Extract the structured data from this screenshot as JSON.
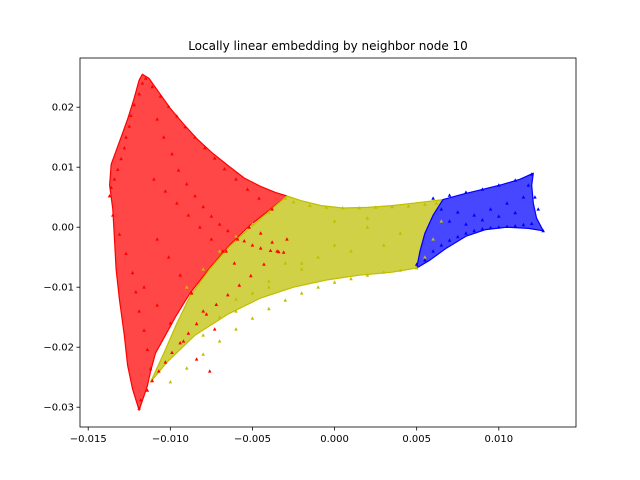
{
  "chart_data": {
    "type": "scatter",
    "title": "Locally linear embedding by neighbor node 10",
    "xlabel": "",
    "ylabel": "",
    "xlim": [
      -0.0155,
      0.0147
    ],
    "ylim": [
      -0.0333,
      0.0282
    ],
    "x_ticks": [
      -0.015,
      -0.01,
      -0.005,
      0.0,
      0.005,
      0.01
    ],
    "x_tick_labels": [
      "−0.015",
      "−0.010",
      "−0.005",
      "0.000",
      "0.005",
      "0.010"
    ],
    "y_ticks": [
      -0.03,
      -0.02,
      -0.01,
      0.0,
      0.01,
      0.02
    ],
    "y_tick_labels": [
      "−0.03",
      "−0.02",
      "−0.01",
      "0.00",
      "0.01",
      "0.02"
    ],
    "grid": false,
    "legend": "none",
    "marker": "^",
    "series": [
      {
        "color": "#ff0000",
        "x": [
          -0.0119,
          -0.0118,
          -0.0114,
          -0.0111,
          -0.0107,
          -0.0103,
          -0.0099,
          -0.0094,
          -0.0089,
          -0.0084,
          -0.0078,
          -0.0072,
          -0.0065,
          -0.0058,
          -0.0051,
          -0.0043,
          -0.0035,
          -0.0029,
          -0.0038,
          -0.0046,
          -0.0053,
          -0.006,
          -0.0067,
          -0.0073,
          -0.0079,
          -0.0085,
          -0.0091,
          -0.0096,
          -0.0101,
          -0.0106,
          -0.0111,
          -0.0115,
          -0.0117,
          -0.0119,
          -0.0122,
          -0.0124,
          -0.0125,
          -0.0127,
          -0.0128,
          -0.013,
          -0.0132,
          -0.0134,
          -0.0136,
          -0.0137,
          -0.0135,
          -0.0131,
          -0.0127,
          -0.0123,
          -0.0121,
          -0.0119,
          -0.0116,
          -0.0114,
          -0.0112,
          -0.0108,
          -0.0104,
          -0.0099,
          -0.0095,
          -0.009,
          -0.0085,
          -0.008,
          -0.0075,
          -0.007,
          -0.0065,
          -0.006,
          -0.0055,
          -0.005,
          -0.0045,
          -0.0039,
          -0.0034,
          -0.0031,
          -0.0108,
          -0.0101,
          -0.0094,
          -0.0087,
          -0.008,
          -0.0073,
          -0.0066,
          -0.0059,
          -0.0052,
          -0.0045,
          -0.0038,
          -0.011,
          -0.0103,
          -0.0096,
          -0.0089,
          -0.0082,
          -0.0075,
          -0.0068,
          -0.0061,
          -0.0116,
          -0.0108,
          -0.01,
          -0.0092,
          -0.0084,
          -0.0076
        ],
        "y": [
          -0.0302,
          -0.0288,
          -0.0272,
          -0.0256,
          -0.024,
          -0.0225,
          -0.0209,
          -0.0193,
          -0.0177,
          -0.0161,
          -0.0145,
          -0.0129,
          -0.0113,
          -0.0097,
          -0.0081,
          -0.0062,
          -0.004,
          -0.002,
          0.003,
          0.0048,
          0.0063,
          0.008,
          0.0097,
          0.0115,
          0.0132,
          0.015,
          0.0167,
          0.0185,
          0.0201,
          0.0218,
          0.0234,
          0.0248,
          0.024,
          0.0222,
          0.0204,
          0.0186,
          0.0168,
          0.015,
          0.0132,
          0.0114,
          0.0096,
          0.008,
          0.0066,
          0.0052,
          0.002,
          -0.0012,
          -0.0044,
          -0.0076,
          -0.0108,
          -0.014,
          -0.0172,
          -0.0204,
          -0.0236,
          0.018,
          0.015,
          0.0122,
          0.0095,
          0.0072,
          0.0052,
          0.0034,
          0.0018,
          0.0005,
          -0.0006,
          -0.0015,
          -0.0023,
          -0.003,
          -0.0035,
          -0.0039,
          -0.0041,
          -0.0042,
          -0.002,
          -0.005,
          -0.008,
          -0.011,
          -0.014,
          -0.017,
          -0.004,
          -0.002,
          0.0,
          -0.001,
          -0.0025,
          0.008,
          0.006,
          0.004,
          0.002,
          0.0,
          -0.002,
          -0.004,
          -0.006,
          -0.01,
          -0.013,
          -0.016,
          -0.019,
          -0.022,
          -0.024
        ]
      },
      {
        "color": "#bfbf00",
        "x": [
          -0.01,
          -0.009,
          -0.008,
          -0.007,
          -0.006,
          -0.005,
          -0.004,
          -0.003,
          -0.002,
          -0.001,
          0.0,
          0.001,
          0.002,
          0.003,
          0.004,
          0.005,
          0.0055,
          0.006,
          0.0065,
          0.0062,
          0.0055,
          0.0045,
          0.0035,
          0.0025,
          0.0015,
          0.0005,
          -0.0005,
          -0.0015,
          -0.0025,
          -0.003,
          -0.004,
          -0.005,
          -0.006,
          -0.007,
          -0.008,
          -0.009,
          -0.006,
          -0.004,
          -0.002,
          0.0,
          0.002,
          0.004,
          -0.007,
          -0.005,
          -0.003,
          -0.001,
          0.001,
          0.003,
          -0.008,
          -0.006,
          -0.004,
          -0.002,
          0.0,
          0.002
        ],
        "y": [
          -0.0258,
          -0.0235,
          -0.0212,
          -0.019,
          -0.017,
          -0.0152,
          -0.0136,
          -0.0122,
          -0.011,
          -0.01,
          -0.0092,
          -0.0086,
          -0.008,
          -0.0075,
          -0.0072,
          -0.0068,
          -0.005,
          -0.002,
          0.001,
          0.004,
          0.0038,
          0.0035,
          0.0034,
          0.0033,
          0.0032,
          0.0032,
          0.0033,
          0.0036,
          0.0042,
          0.0048,
          0.0025,
          0.0005,
          -0.0015,
          -0.004,
          -0.007,
          -0.01,
          -0.012,
          -0.009,
          -0.006,
          -0.003,
          0.0,
          -0.001,
          -0.015,
          -0.011,
          -0.006,
          -0.005,
          -0.004,
          -0.003,
          -0.018,
          -0.014,
          -0.01,
          -0.007,
          0.001,
          0.0015
        ]
      },
      {
        "color": "#0000ff",
        "x": [
          0.005,
          0.0055,
          0.006,
          0.0065,
          0.007,
          0.0075,
          0.008,
          0.0085,
          0.009,
          0.0095,
          0.01,
          0.0105,
          0.011,
          0.0115,
          0.012,
          0.0122,
          0.0124,
          0.0127,
          0.012,
          0.011,
          0.01,
          0.009,
          0.008,
          0.007,
          0.006,
          0.0065,
          0.0075,
          0.0085,
          0.0095,
          0.0105,
          0.0115,
          0.007,
          0.008,
          0.009,
          0.01,
          0.011,
          0.0118
        ],
        "y": [
          -0.0062,
          -0.0055,
          -0.004,
          -0.003,
          -0.0022,
          -0.0016,
          -0.001,
          -0.0006,
          -0.0003,
          -0.0001,
          0.0,
          0.0001,
          0.0002,
          0.0004,
          0.0006,
          0.005,
          0.003,
          -0.0006,
          0.0088,
          0.0078,
          0.007,
          0.0063,
          0.0058,
          0.0053,
          0.0048,
          0.003,
          0.0025,
          0.002,
          0.003,
          0.004,
          0.005,
          0.001,
          0.0005,
          0.0012,
          0.0018,
          0.0024,
          0.007
        ]
      }
    ],
    "region_polygons": [
      {
        "color": "#ff0000",
        "points": [
          [
            -0.0119,
            -0.0305
          ],
          [
            -0.0123,
            -0.027
          ],
          [
            -0.0126,
            -0.023
          ],
          [
            -0.0128,
            -0.018
          ],
          [
            -0.0131,
            -0.012
          ],
          [
            -0.0133,
            -0.007
          ],
          [
            -0.0134,
            -0.002
          ],
          [
            -0.0135,
            0.003
          ],
          [
            -0.0137,
            0.007
          ],
          [
            -0.0136,
            0.0105
          ],
          [
            -0.0134,
            0.012
          ],
          [
            -0.013,
            0.015
          ],
          [
            -0.0126,
            0.018
          ],
          [
            -0.0122,
            0.0215
          ],
          [
            -0.0119,
            0.0245
          ],
          [
            -0.0117,
            0.0255
          ],
          [
            -0.0113,
            0.0248
          ],
          [
            -0.0107,
            0.0225
          ],
          [
            -0.01,
            0.0198
          ],
          [
            -0.0092,
            0.0172
          ],
          [
            -0.0084,
            0.0148
          ],
          [
            -0.0075,
            0.0125
          ],
          [
            -0.0065,
            0.0103
          ],
          [
            -0.0055,
            0.0082
          ],
          [
            -0.0045,
            0.0068
          ],
          [
            -0.0036,
            0.0058
          ],
          [
            -0.0029,
            0.0052
          ],
          [
            -0.004,
            0.0028
          ],
          [
            -0.0052,
            0.0002
          ],
          [
            -0.0064,
            -0.003
          ],
          [
            -0.0076,
            -0.0068
          ],
          [
            -0.0088,
            -0.011
          ],
          [
            -0.0097,
            -0.015
          ],
          [
            -0.0104,
            -0.0185
          ],
          [
            -0.0109,
            -0.021
          ],
          [
            -0.0112,
            -0.024
          ],
          [
            -0.0114,
            -0.0265
          ]
        ]
      },
      {
        "color": "#bfbf00",
        "points": [
          [
            -0.0029,
            0.0052
          ],
          [
            -0.002,
            0.0044
          ],
          [
            -0.0008,
            0.0036
          ],
          [
            0.0005,
            0.0032
          ],
          [
            0.002,
            0.0033
          ],
          [
            0.0035,
            0.0036
          ],
          [
            0.0048,
            0.004
          ],
          [
            0.006,
            0.0044
          ],
          [
            0.0066,
            0.0046
          ],
          [
            0.006,
            0.002
          ],
          [
            0.0055,
            -0.001
          ],
          [
            0.0052,
            -0.004
          ],
          [
            0.005,
            -0.0068
          ],
          [
            0.0035,
            -0.0075
          ],
          [
            0.0015,
            -0.008
          ],
          [
            -0.0005,
            -0.0088
          ],
          [
            -0.0025,
            -0.01
          ],
          [
            -0.0045,
            -0.0118
          ],
          [
            -0.0065,
            -0.0145
          ],
          [
            -0.0085,
            -0.018
          ],
          [
            -0.0102,
            -0.0225
          ],
          [
            -0.0112,
            -0.0258
          ],
          [
            -0.0104,
            -0.021
          ],
          [
            -0.0096,
            -0.016
          ],
          [
            -0.0088,
            -0.0115
          ],
          [
            -0.0076,
            -0.007
          ],
          [
            -0.0064,
            -0.0032
          ],
          [
            -0.0052,
            -0.0002
          ],
          [
            -0.004,
            0.0026
          ]
        ]
      },
      {
        "color": "#0000ff",
        "points": [
          [
            0.0066,
            0.0046
          ],
          [
            0.0078,
            0.0055
          ],
          [
            0.009,
            0.0063
          ],
          [
            0.0102,
            0.0071
          ],
          [
            0.0113,
            0.008
          ],
          [
            0.0121,
            0.009
          ],
          [
            0.012,
            0.007
          ],
          [
            0.0121,
            0.004
          ],
          [
            0.0123,
            0.0015
          ],
          [
            0.0127,
            -0.0006
          ],
          [
            0.0118,
            -0.0002
          ],
          [
            0.0105,
            0.0
          ],
          [
            0.0092,
            -0.0004
          ],
          [
            0.008,
            -0.0015
          ],
          [
            0.0068,
            -0.0035
          ],
          [
            0.0058,
            -0.0055
          ],
          [
            0.005,
            -0.0068
          ],
          [
            0.0052,
            -0.004
          ],
          [
            0.0055,
            -0.001
          ],
          [
            0.006,
            0.002
          ]
        ]
      }
    ]
  }
}
